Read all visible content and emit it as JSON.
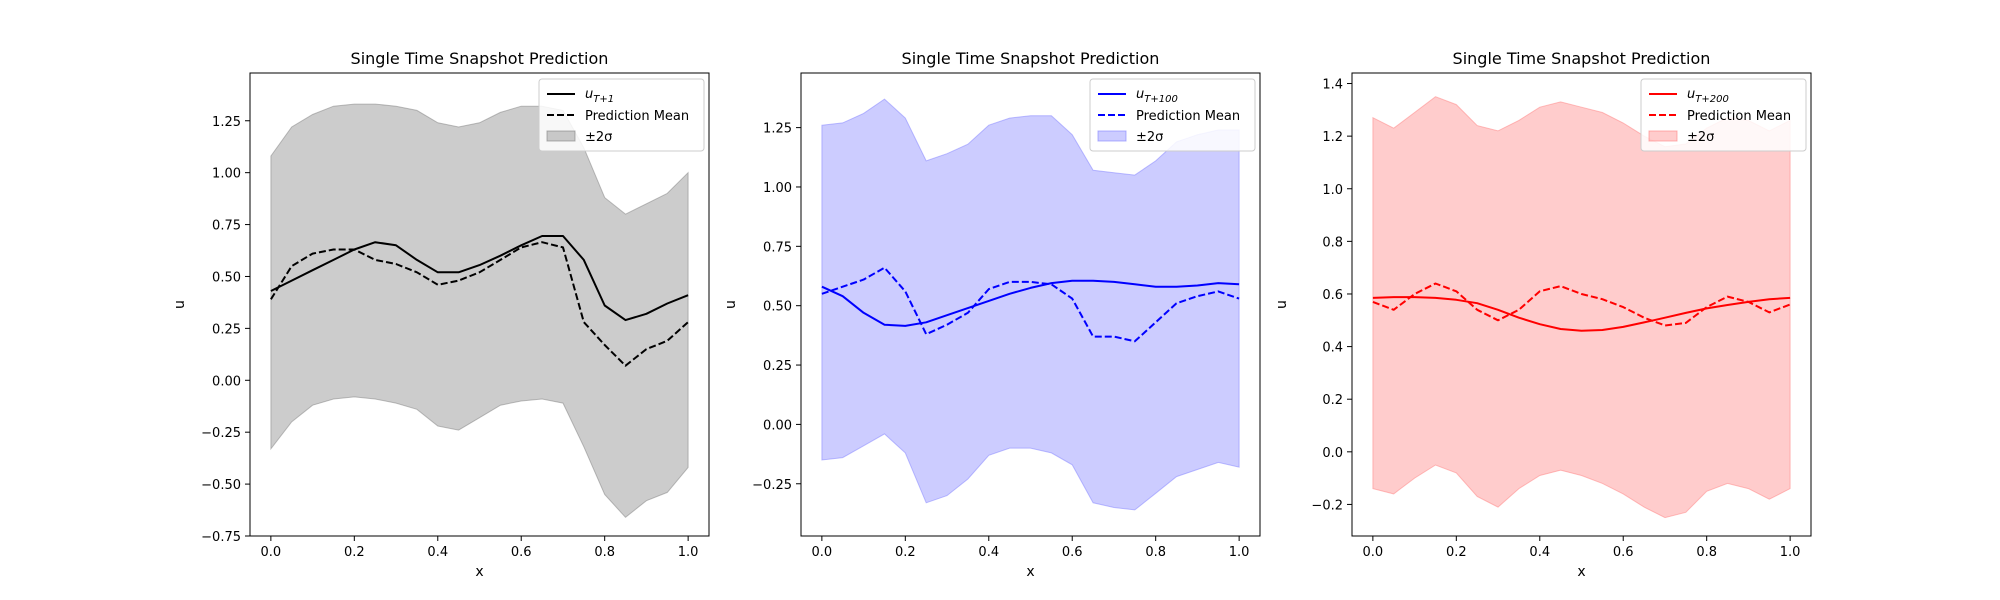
{
  "chart_data": [
    {
      "type": "line",
      "title": "Single Time Snapshot Prediction",
      "xlabel": "x",
      "ylabel": "u",
      "xlim": [
        -0.05,
        1.05
      ],
      "ylim": [
        -0.75,
        1.48
      ],
      "xticks": [
        0.0,
        0.2,
        0.4,
        0.6,
        0.8,
        1.0
      ],
      "yticks": [
        -0.75,
        -0.5,
        -0.25,
        0.0,
        0.25,
        0.5,
        0.75,
        1.0,
        1.25
      ],
      "grid": false,
      "legend_position": "top-right",
      "colors": {
        "line": "#000000",
        "band": "#808080"
      },
      "x": [
        0.0,
        0.05,
        0.1,
        0.15,
        0.2,
        0.25,
        0.3,
        0.35,
        0.4,
        0.45,
        0.5,
        0.55,
        0.6,
        0.65,
        0.7,
        0.75,
        0.8,
        0.85,
        0.9,
        0.95,
        1.0
      ],
      "series": [
        {
          "name": "u_{T+1}",
          "role": "true",
          "style": "solid",
          "values": [
            0.43,
            0.48,
            0.53,
            0.58,
            0.63,
            0.665,
            0.65,
            0.58,
            0.52,
            0.52,
            0.555,
            0.6,
            0.65,
            0.695,
            0.695,
            0.58,
            0.36,
            0.29,
            0.32,
            0.37,
            0.41
          ]
        },
        {
          "name": "Prediction Mean",
          "role": "mean",
          "style": "dashed",
          "values": [
            0.39,
            0.55,
            0.61,
            0.63,
            0.63,
            0.58,
            0.56,
            0.52,
            0.46,
            0.48,
            0.52,
            0.58,
            0.64,
            0.665,
            0.64,
            0.28,
            0.17,
            0.07,
            0.15,
            0.19,
            0.28
          ]
        },
        {
          "name": "±2σ",
          "role": "band",
          "upper": [
            1.08,
            1.22,
            1.28,
            1.32,
            1.33,
            1.33,
            1.32,
            1.3,
            1.24,
            1.22,
            1.24,
            1.29,
            1.32,
            1.32,
            1.3,
            1.12,
            0.88,
            0.8,
            0.85,
            0.9,
            1.0
          ],
          "lower": [
            -0.33,
            -0.2,
            -0.12,
            -0.09,
            -0.08,
            -0.09,
            -0.11,
            -0.14,
            -0.22,
            -0.24,
            -0.18,
            -0.12,
            -0.1,
            -0.09,
            -0.11,
            -0.32,
            -0.55,
            -0.66,
            -0.58,
            -0.54,
            -0.42
          ]
        }
      ],
      "legend": {
        "true_label": "u_{T+1}",
        "mean_label": "Prediction Mean",
        "band_label": "±2σ"
      }
    },
    {
      "type": "line",
      "title": "Single Time Snapshot Prediction",
      "xlabel": "x",
      "ylabel": "u",
      "xlim": [
        -0.05,
        1.05
      ],
      "ylim": [
        -0.47,
        1.48
      ],
      "xticks": [
        0.0,
        0.2,
        0.4,
        0.6,
        0.8,
        1.0
      ],
      "yticks": [
        -0.25,
        0.0,
        0.25,
        0.5,
        0.75,
        1.0,
        1.25
      ],
      "grid": false,
      "legend_position": "top-right",
      "colors": {
        "line": "#0000ff",
        "band": "#8080ff"
      },
      "x": [
        0.0,
        0.05,
        0.1,
        0.15,
        0.2,
        0.25,
        0.3,
        0.35,
        0.4,
        0.45,
        0.5,
        0.55,
        0.6,
        0.65,
        0.7,
        0.75,
        0.8,
        0.85,
        0.9,
        0.95,
        1.0
      ],
      "series": [
        {
          "name": "u_{T+100}",
          "role": "true",
          "style": "solid",
          "values": [
            0.58,
            0.54,
            0.47,
            0.42,
            0.415,
            0.43,
            0.46,
            0.49,
            0.52,
            0.55,
            0.575,
            0.595,
            0.605,
            0.605,
            0.6,
            0.59,
            0.58,
            0.58,
            0.585,
            0.595,
            0.59
          ]
        },
        {
          "name": "Prediction Mean",
          "role": "mean",
          "style": "dashed",
          "values": [
            0.55,
            0.58,
            0.61,
            0.66,
            0.56,
            0.38,
            0.42,
            0.47,
            0.57,
            0.6,
            0.6,
            0.59,
            0.53,
            0.37,
            0.37,
            0.35,
            0.43,
            0.51,
            0.54,
            0.56,
            0.53
          ]
        },
        {
          "name": "±2σ",
          "role": "band",
          "upper": [
            1.26,
            1.27,
            1.31,
            1.37,
            1.29,
            1.11,
            1.14,
            1.18,
            1.26,
            1.29,
            1.3,
            1.3,
            1.22,
            1.07,
            1.06,
            1.05,
            1.11,
            1.19,
            1.22,
            1.24,
            1.24
          ],
          "lower": [
            -0.15,
            -0.14,
            -0.09,
            -0.04,
            -0.12,
            -0.33,
            -0.3,
            -0.23,
            -0.13,
            -0.1,
            -0.1,
            -0.12,
            -0.17,
            -0.33,
            -0.35,
            -0.36,
            -0.29,
            -0.22,
            -0.19,
            -0.16,
            -0.18
          ]
        }
      ],
      "legend": {
        "true_label": "u_{T+100}",
        "mean_label": "Prediction Mean",
        "band_label": "±2σ"
      }
    },
    {
      "type": "line",
      "title": "Single Time Snapshot Prediction",
      "xlabel": "x",
      "ylabel": "u",
      "xlim": [
        -0.05,
        1.05
      ],
      "ylim": [
        -0.32,
        1.44
      ],
      "xticks": [
        0.0,
        0.2,
        0.4,
        0.6,
        0.8,
        1.0
      ],
      "yticks": [
        -0.2,
        0.0,
        0.2,
        0.4,
        0.6,
        0.8,
        1.0,
        1.2,
        1.4
      ],
      "grid": false,
      "legend_position": "top-right",
      "colors": {
        "line": "#ff0000",
        "band": "#ff8080"
      },
      "x": [
        0.0,
        0.05,
        0.1,
        0.15,
        0.2,
        0.25,
        0.3,
        0.35,
        0.4,
        0.45,
        0.5,
        0.55,
        0.6,
        0.65,
        0.7,
        0.75,
        0.8,
        0.85,
        0.9,
        0.95,
        1.0
      ],
      "series": [
        {
          "name": "u_{T+200}",
          "role": "true",
          "style": "solid",
          "values": [
            0.585,
            0.588,
            0.588,
            0.585,
            0.578,
            0.565,
            0.54,
            0.51,
            0.485,
            0.467,
            0.46,
            0.463,
            0.475,
            0.492,
            0.51,
            0.528,
            0.545,
            0.558,
            0.57,
            0.58,
            0.585
          ]
        },
        {
          "name": "Prediction Mean",
          "role": "mean",
          "style": "dashed",
          "values": [
            0.57,
            0.54,
            0.6,
            0.64,
            0.61,
            0.54,
            0.5,
            0.54,
            0.61,
            0.63,
            0.6,
            0.58,
            0.55,
            0.51,
            0.48,
            0.49,
            0.55,
            0.59,
            0.57,
            0.53,
            0.56
          ]
        },
        {
          "name": "±2σ",
          "role": "band",
          "upper": [
            1.27,
            1.23,
            1.29,
            1.35,
            1.32,
            1.24,
            1.22,
            1.26,
            1.31,
            1.33,
            1.31,
            1.29,
            1.25,
            1.2,
            1.16,
            1.17,
            1.23,
            1.27,
            1.26,
            1.22,
            1.26
          ],
          "lower": [
            -0.14,
            -0.16,
            -0.1,
            -0.05,
            -0.08,
            -0.17,
            -0.21,
            -0.14,
            -0.09,
            -0.07,
            -0.09,
            -0.12,
            -0.16,
            -0.21,
            -0.25,
            -0.23,
            -0.15,
            -0.12,
            -0.14,
            -0.18,
            -0.14
          ]
        }
      ],
      "legend": {
        "true_label": "u_{T+200}",
        "mean_label": "Prediction Mean",
        "band_label": "±2σ"
      }
    }
  ]
}
